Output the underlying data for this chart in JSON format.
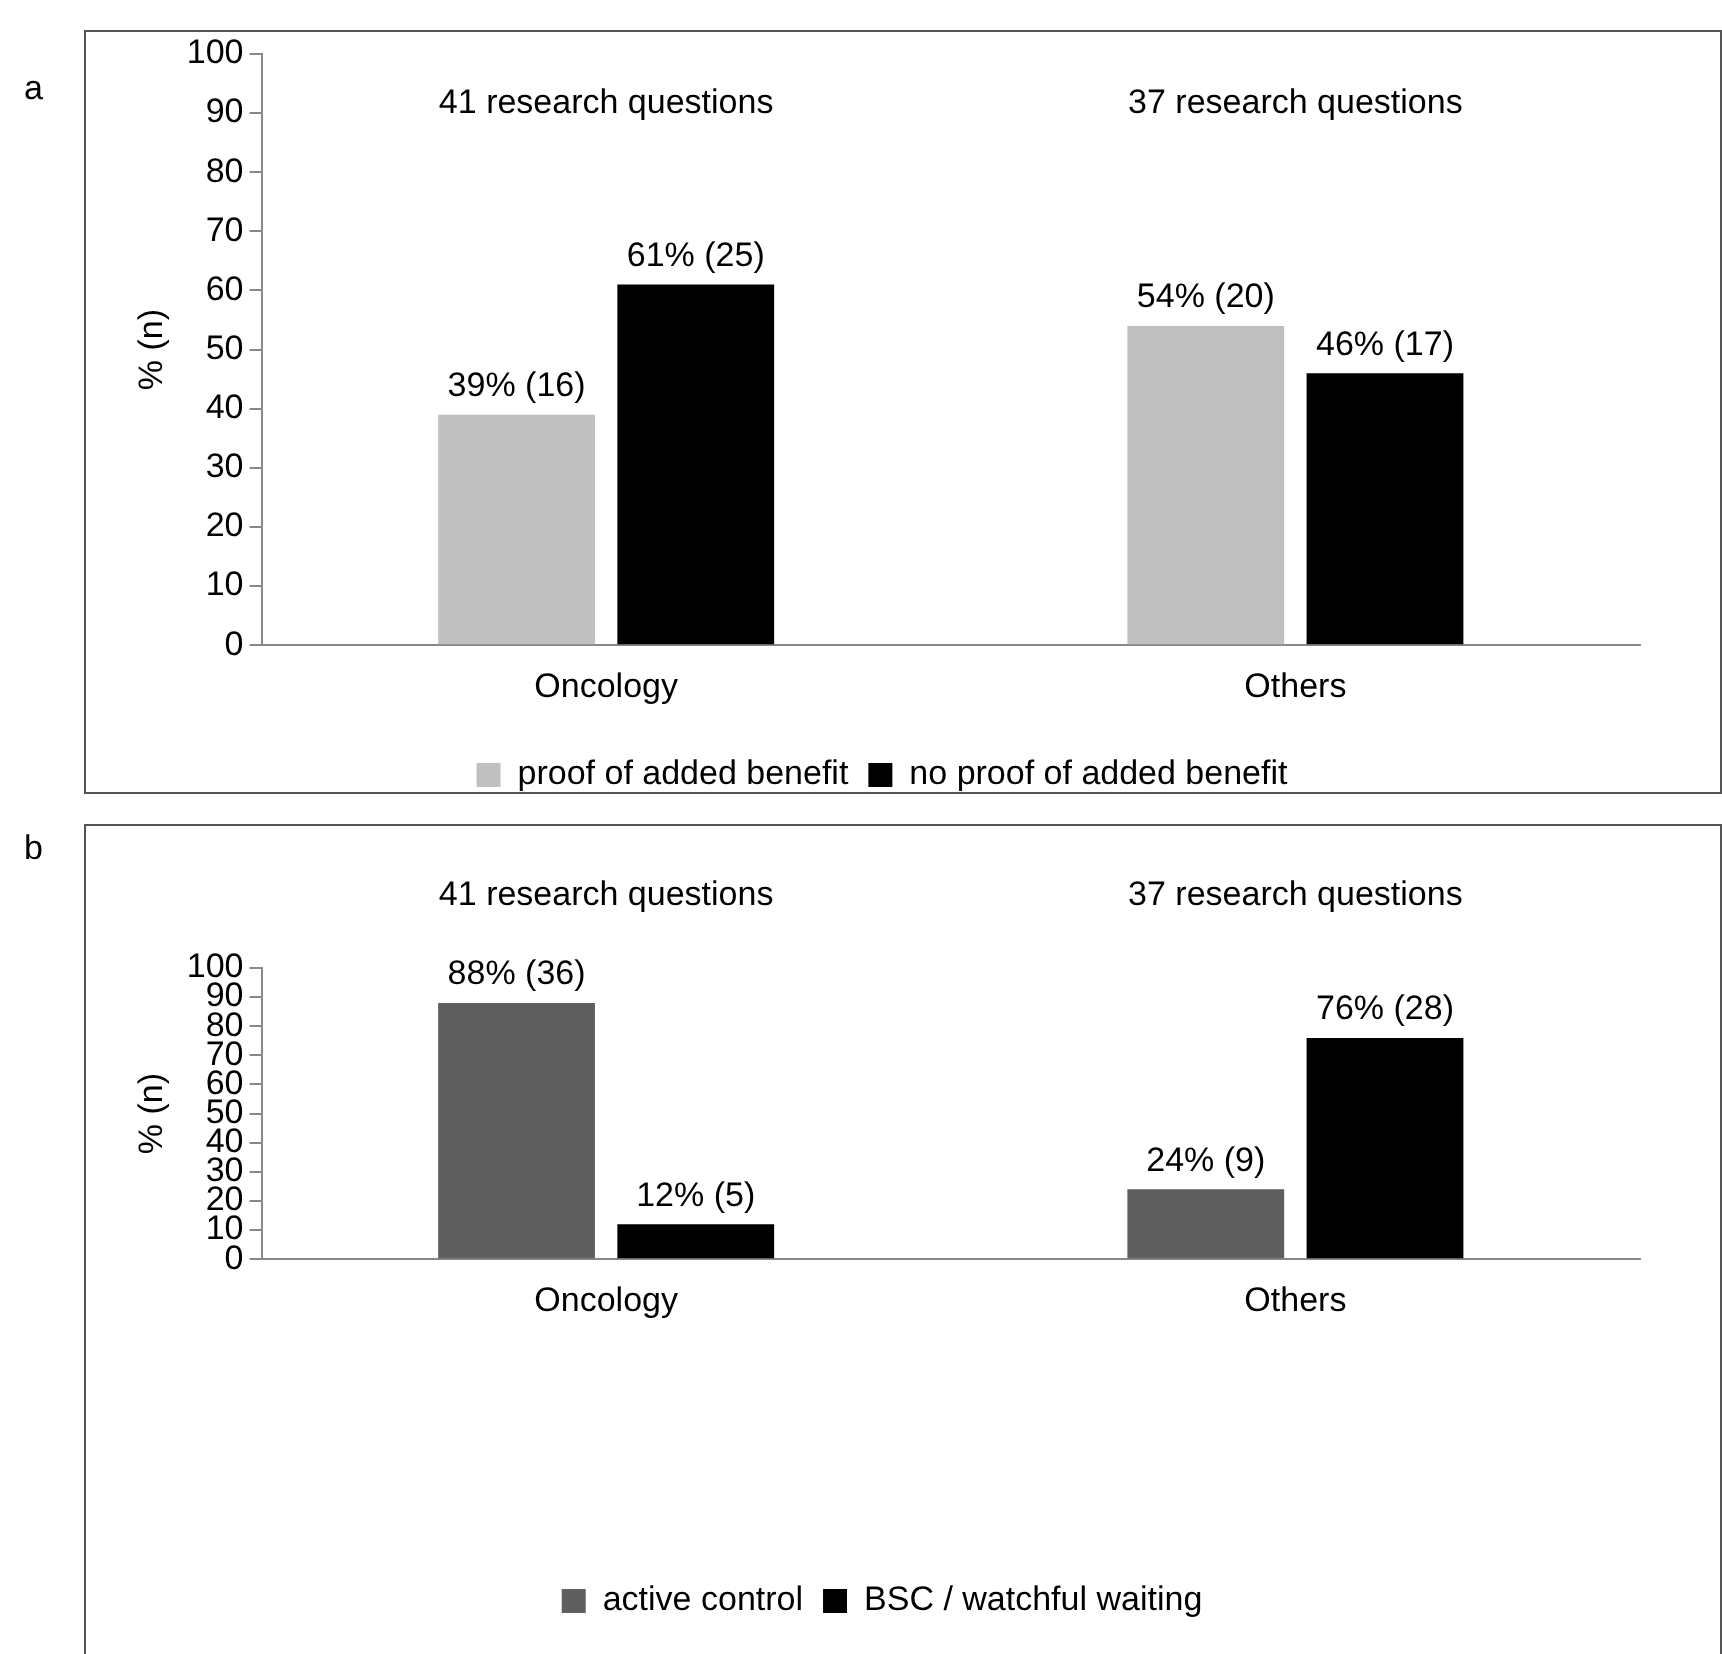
{
  "chart_data": [
    {
      "type": "bar",
      "ylabel": "% (n)",
      "categories": [
        "Oncology",
        "Others"
      ],
      "series": [
        {
          "name": "proof of added benefit",
          "color": "#c0c0c0",
          "values": [
            39,
            54
          ],
          "value_labels": [
            "39% (16)",
            "54% (20)"
          ]
        },
        {
          "name": "no proof of added benefit",
          "color": "#000000",
          "values": [
            61,
            46
          ],
          "value_labels": [
            "61% (25)",
            "46% (17)"
          ]
        }
      ],
      "ylim": [
        0,
        100
      ],
      "yticks": [
        0,
        10,
        20,
        30,
        40,
        50,
        60,
        70,
        80,
        90,
        100
      ],
      "legend": "bottom",
      "annotations": [
        "a",
        "41 research questions",
        "37 research questions"
      ]
    },
    {
      "type": "bar",
      "ylabel": "% (n)",
      "categories": [
        "Oncology",
        "Others"
      ],
      "series": [
        {
          "name": "active control",
          "color": "#5f5f5f",
          "values": [
            88,
            24
          ],
          "value_labels": [
            "88% (36)",
            "24% (9)"
          ]
        },
        {
          "name": "BSC / watchful waiting",
          "color": "#000000",
          "values": [
            12,
            76
          ],
          "value_labels": [
            "12% (5)",
            "76% (28)"
          ]
        }
      ],
      "ylim": [
        0,
        100
      ],
      "yticks": [
        0,
        10,
        20,
        30,
        40,
        50,
        60,
        70,
        80,
        90,
        100
      ],
      "legend": "bottom",
      "annotations": [
        "b",
        "41 research questions",
        "37 research questions"
      ]
    }
  ]
}
